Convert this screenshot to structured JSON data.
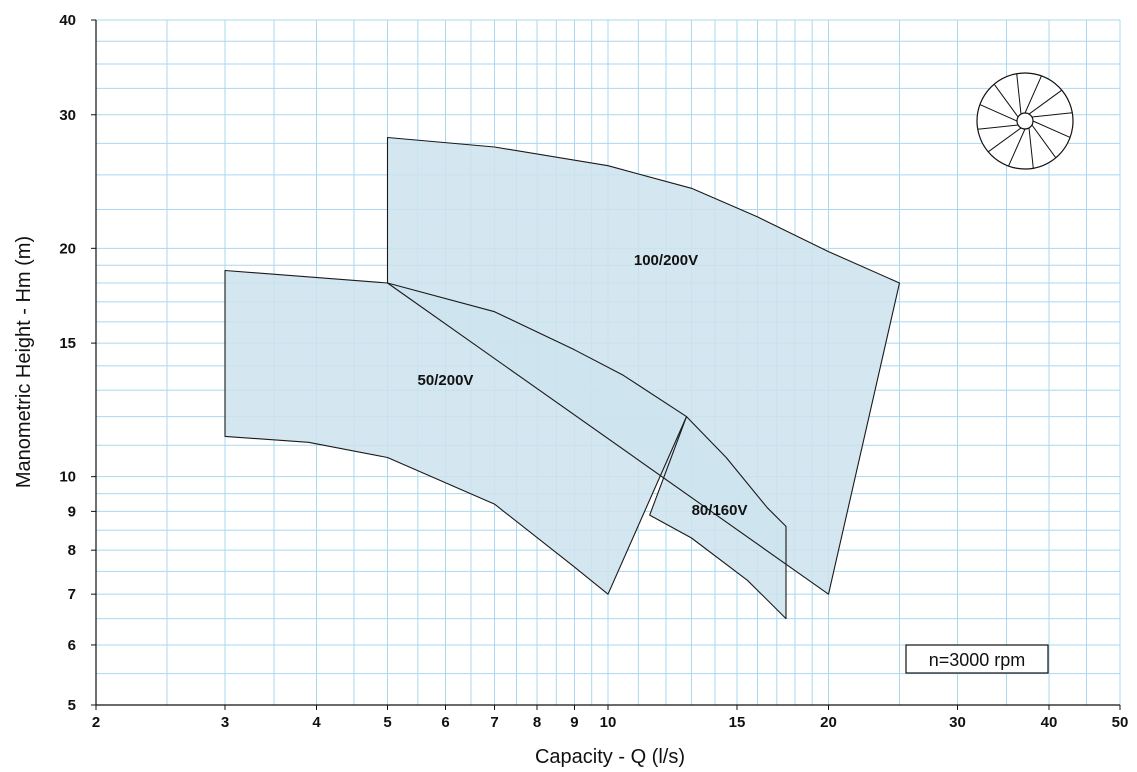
{
  "chart_data": {
    "type": "area",
    "xlabel": "Capacity - Q (l/s)",
    "ylabel": "Manometric Height - Hm (m)",
    "xscale": "log",
    "yscale": "log",
    "xlim": [
      2,
      50
    ],
    "ylim": [
      5,
      40
    ],
    "x_ticks": [
      2,
      3,
      4,
      5,
      6,
      7,
      8,
      9,
      10,
      15,
      20,
      30,
      40,
      50
    ],
    "y_ticks": [
      5,
      6,
      7,
      8,
      9,
      10,
      15,
      20,
      30,
      40
    ],
    "grid": true,
    "colors": {
      "fill": "#cde3ed",
      "grid": "#a9d8ef",
      "outline": "#1a1a1a"
    },
    "annotation": "n=3000 rpm",
    "icon": "impeller-icon",
    "series": [
      {
        "name": "100/200V",
        "label_at": [
          12.0,
          19.0
        ],
        "points": [
          [
            5,
            18
          ],
          [
            5,
            28
          ],
          [
            7,
            27.2
          ],
          [
            10,
            25.7
          ],
          [
            13,
            24.0
          ],
          [
            16,
            22.0
          ],
          [
            20,
            19.8
          ],
          [
            25,
            18.0
          ],
          [
            20,
            7.0
          ]
        ]
      },
      {
        "name": "50/200V",
        "label_at": [
          6.0,
          13.2
        ],
        "points": [
          [
            3,
            18.7
          ],
          [
            5,
            18.0
          ],
          [
            7,
            16.5
          ],
          [
            9,
            14.7
          ],
          [
            10.5,
            13.6
          ],
          [
            12.8,
            12.0
          ],
          [
            10,
            7.0
          ],
          [
            9.0,
            7.6
          ],
          [
            7.0,
            9.2
          ],
          [
            5.0,
            10.6
          ],
          [
            3.9,
            11.1
          ],
          [
            3,
            11.3
          ]
        ]
      },
      {
        "name": "80/160V",
        "label_at": [
          14.2,
          8.9
        ],
        "points": [
          [
            12.8,
            12.0
          ],
          [
            14.5,
            10.6
          ],
          [
            16.5,
            9.1
          ],
          [
            17.5,
            8.6
          ],
          [
            17.5,
            6.5
          ],
          [
            15.5,
            7.3
          ],
          [
            13.0,
            8.3
          ],
          [
            11.4,
            8.9
          ]
        ]
      }
    ]
  }
}
